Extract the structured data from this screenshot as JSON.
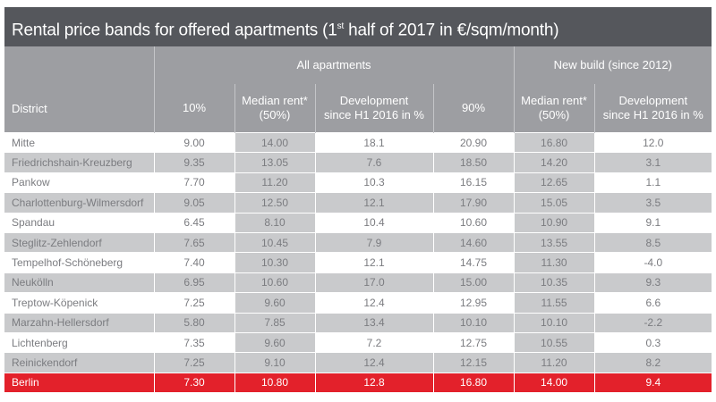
{
  "title": {
    "pre": "Rental price bands for offered apartments (1",
    "sup": "st",
    "post": " half of 2017 in €/sqm/month)"
  },
  "groups": {
    "all": "All apartments",
    "new": "New build (since 2012)"
  },
  "columns": {
    "district": "District",
    "p10": "10%",
    "median_l1": "Median rent*",
    "median_l2": "(50%)",
    "dev_l1": "Development",
    "dev_l2": "since H1 2016 in %",
    "p90": "90%",
    "nb_median_l1": "Median rent*",
    "nb_median_l2": "(50%)",
    "nb_dev_l1": "Development",
    "nb_dev_l2": "since H1 2016 in %"
  },
  "colors": {
    "title_bg": "#55575c",
    "header_bg": "#9d9ea2",
    "row_alt": "#c9cacc",
    "highlight": "#e3212b"
  },
  "chart_data": {
    "type": "table",
    "title": "Rental price bands for offered apartments (1st half of 2017 in €/sqm/month)",
    "headers": [
      "District",
      "10%",
      "Median rent* (50%)",
      "Development since H1 2016 in %",
      "90%",
      "Median rent* (50%)",
      "Development since H1 2016 in %"
    ],
    "rows": [
      [
        "Mitte",
        "9.00",
        "14.00",
        "18.1",
        "20.90",
        "16.80",
        "12.0"
      ],
      [
        "Friedrichshain-Kreuzberg",
        "9.35",
        "13.05",
        "7.6",
        "18.50",
        "14.20",
        "3.1"
      ],
      [
        "Pankow",
        "7.70",
        "11.20",
        "10.3",
        "16.15",
        "12.65",
        "1.1"
      ],
      [
        "Charlottenburg-Wilmersdorf",
        "9.05",
        "12.50",
        "12.1",
        "17.90",
        "15.05",
        "3.5"
      ],
      [
        "Spandau",
        "6.45",
        "8.10",
        "10.4",
        "10.60",
        "10.90",
        "9.1"
      ],
      [
        "Steglitz-Zehlendorf",
        "7.65",
        "10.45",
        "7.9",
        "14.60",
        "13.55",
        "8.5"
      ],
      [
        "Tempelhof-Schöneberg",
        "7.40",
        "10.30",
        "12.1",
        "14.75",
        "11.30",
        "-4.0"
      ],
      [
        "Neukölln",
        "6.95",
        "10.60",
        "17.0",
        "15.00",
        "10.35",
        "9.3"
      ],
      [
        "Treptow-Köpenick",
        "7.25",
        "9.60",
        "12.4",
        "12.95",
        "11.55",
        "6.6"
      ],
      [
        "Marzahn-Hellersdorf",
        "5.80",
        "7.85",
        "13.4",
        "10.10",
        "10.10",
        "-2.2"
      ],
      [
        "Lichtenberg",
        "7.35",
        "9.60",
        "7.2",
        "12.75",
        "10.55",
        "0.3"
      ],
      [
        "Reinickendorf",
        "7.25",
        "9.10",
        "12.4",
        "12.15",
        "11.20",
        "8.2"
      ],
      [
        "Berlin",
        "7.30",
        "10.80",
        "12.8",
        "16.80",
        "14.00",
        "9.4"
      ]
    ]
  }
}
